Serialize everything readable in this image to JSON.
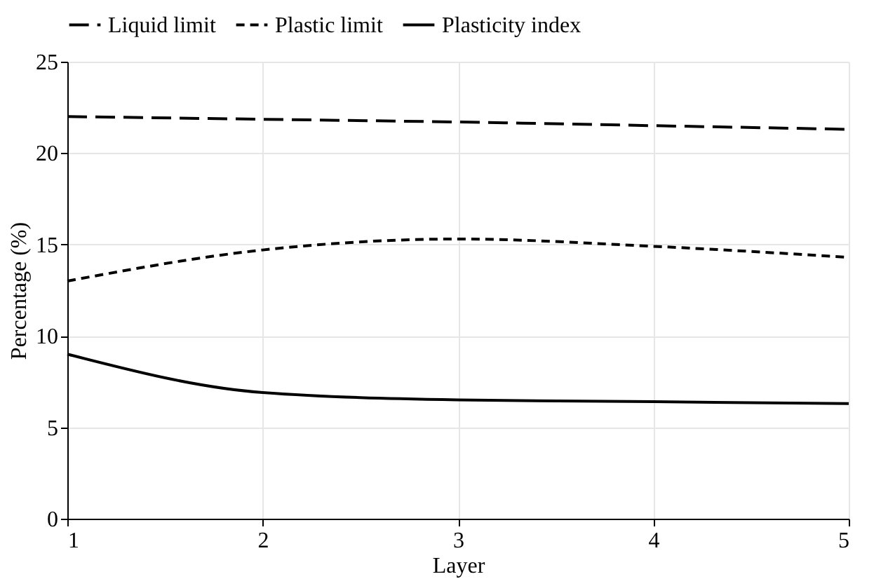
{
  "chart_data": {
    "type": "line",
    "xlabel": "Layer",
    "ylabel": "Percentage (%)",
    "x": [
      1,
      2,
      3,
      4,
      5
    ],
    "series": [
      {
        "name": "Liquid limit",
        "color": "#000000",
        "line_style": "long_dashed",
        "values": [
          22.0,
          21.85,
          21.7,
          21.5,
          21.3
        ]
      },
      {
        "name": "Plastic limit",
        "color": "#000000",
        "line_style": "dashed",
        "values": [
          13.0,
          14.7,
          15.3,
          14.9,
          14.3
        ]
      },
      {
        "name": "Plasticity index",
        "color": "#000000",
        "line_style": "solid",
        "values": [
          9.0,
          6.9,
          6.5,
          6.4,
          6.3
        ]
      }
    ],
    "xlim": [
      1,
      5
    ],
    "xticks": [
      1,
      2,
      3,
      4,
      5
    ],
    "ylim": [
      0,
      25
    ],
    "yticks": [
      0,
      5,
      10,
      15,
      20,
      25
    ],
    "grid": true,
    "legend": "top",
    "marker": "none"
  }
}
